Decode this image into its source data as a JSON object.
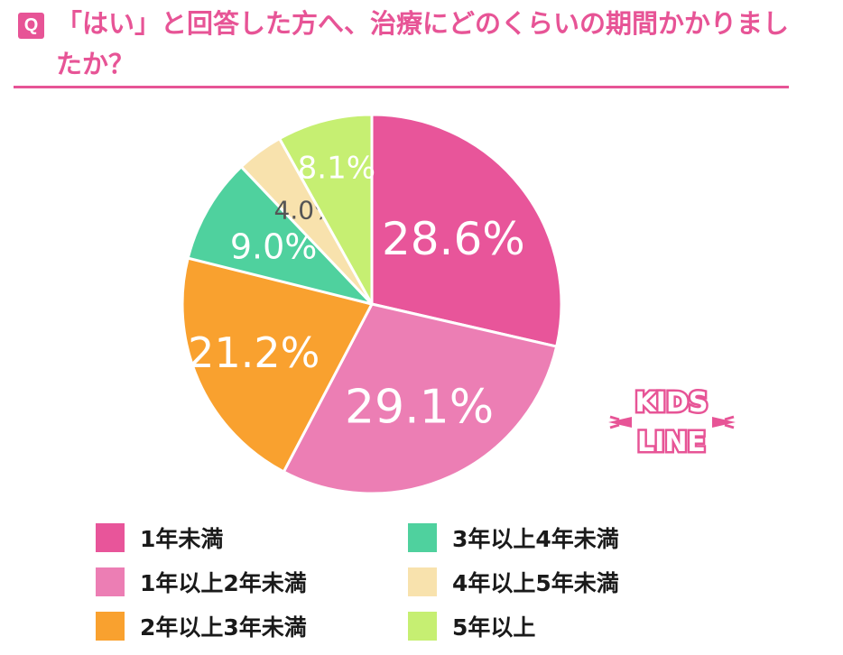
{
  "header": {
    "badge": "Q",
    "title": "「はい」と回答した方へ、治療にどのくらいの期間かかりましたか？"
  },
  "logo": {
    "line1": "KIDS",
    "line2": "LINE",
    "color": "#e75496"
  },
  "chart_data": {
    "type": "pie",
    "title": "",
    "start": "12 o'clock",
    "direction": "clockwise",
    "legend": "bottom",
    "categories": [
      "1年未満",
      "1年以上2年未満",
      "2年以上3年未満",
      "3年以上4年未満",
      "4年以上5年未満",
      "5年以上"
    ],
    "values": [
      28.6,
      29.1,
      21.2,
      9.0,
      4.0,
      8.1
    ],
    "labels": [
      "28.6%",
      "29.1%",
      "21.2%",
      "9.0%",
      "4.0%",
      "8.1%"
    ],
    "colors": [
      "#e8559a",
      "#ec7eb4",
      "#f9a12f",
      "#4fd19e",
      "#f8e2ad",
      "#c6ef72"
    ],
    "label_colors": [
      "#ffffff",
      "#ffffff",
      "#ffffff",
      "#ffffff",
      "#555555",
      "#ffffff"
    ]
  }
}
